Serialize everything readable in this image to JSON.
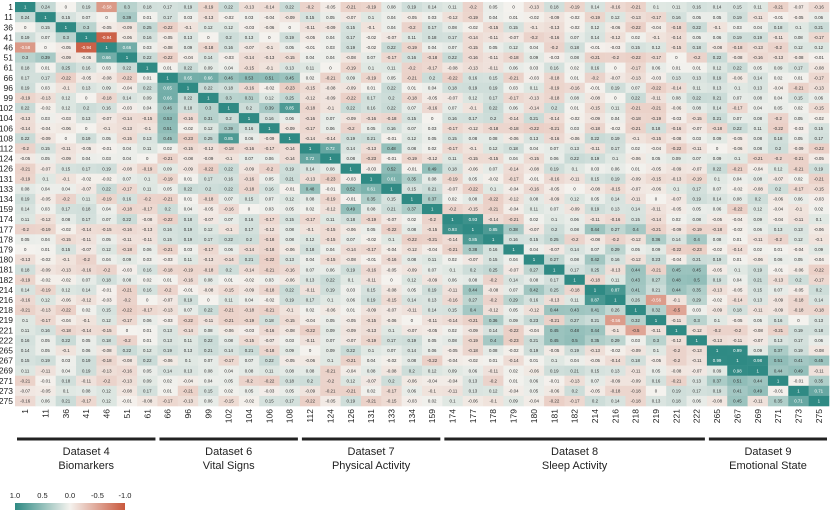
{
  "chart_data": {
    "type": "heatmap",
    "variables": [
      "1",
      "11",
      "36",
      "41",
      "46",
      "51",
      "61",
      "66",
      "96",
      "99",
      "102",
      "104",
      "106",
      "108",
      "112",
      "124",
      "126",
      "131",
      "133",
      "134",
      "159",
      "174",
      "177",
      "178",
      "179",
      "180",
      "181",
      "182",
      "214",
      "216",
      "218",
      "219",
      "221",
      "222",
      "265",
      "267",
      "269",
      "271",
      "273",
      "275"
    ],
    "groups": [
      {
        "title": "Dataset 4",
        "subtitle": "Biomarkers",
        "count": 7
      },
      {
        "title": "Dataset 6",
        "subtitle": "Vital Signs",
        "count": 7
      },
      {
        "title": "Dataset 7",
        "subtitle": "Physical Activity",
        "count": 7
      },
      {
        "title": "Dataset 8",
        "subtitle": "Sleep Activity",
        "count": 13
      },
      {
        "title": "Dataset 9",
        "subtitle": "Emotional State",
        "count": 6
      }
    ],
    "colorbar": {
      "ticks": [
        "1.0",
        "0.5",
        "0.0",
        "-0.5",
        "-1.0"
      ],
      "vmin": -1.0,
      "vmax": 1.0
    },
    "colors": {
      "positive": "#2f8a84",
      "neutral": "#f4f2ee",
      "negative": "#c9583d"
    },
    "show_cell_values": true,
    "notable_values": [
      {
        "row": "11",
        "col": "36",
        "value": 0.15
      },
      {
        "row": "46",
        "col": "1",
        "value": -0.58
      },
      {
        "row": "46",
        "col": "41",
        "value": -0.94
      },
      {
        "row": "41",
        "col": "46",
        "value": -0.94
      },
      {
        "row": "46",
        "col": "51",
        "value": 0.66
      },
      {
        "row": "51",
        "col": "46",
        "value": 0.66
      },
      {
        "row": "96",
        "col": "66",
        "value": 0.65
      },
      {
        "row": "99",
        "col": "66",
        "value": 0.66
      },
      {
        "row": "102",
        "col": "108",
        "value": 0.85
      },
      {
        "row": "112",
        "col": "124",
        "value": 0.72
      },
      {
        "row": "131",
        "col": "133",
        "value": 0.61
      },
      {
        "row": "174",
        "col": "177",
        "value": 0.93
      },
      {
        "row": "177",
        "col": "178",
        "value": 0.85
      },
      {
        "row": "214",
        "col": "216",
        "value": 0.87
      },
      {
        "row": "216",
        "col": "219",
        "value": -0.56
      },
      {
        "row": "218",
        "col": "221",
        "value": -0.5
      },
      {
        "row": "265",
        "col": "267",
        "value": 0.99
      },
      {
        "row": "267",
        "col": "269",
        "value": 0.98
      },
      {
        "row": "273",
        "col": "275",
        "value": 0.71
      }
    ]
  }
}
